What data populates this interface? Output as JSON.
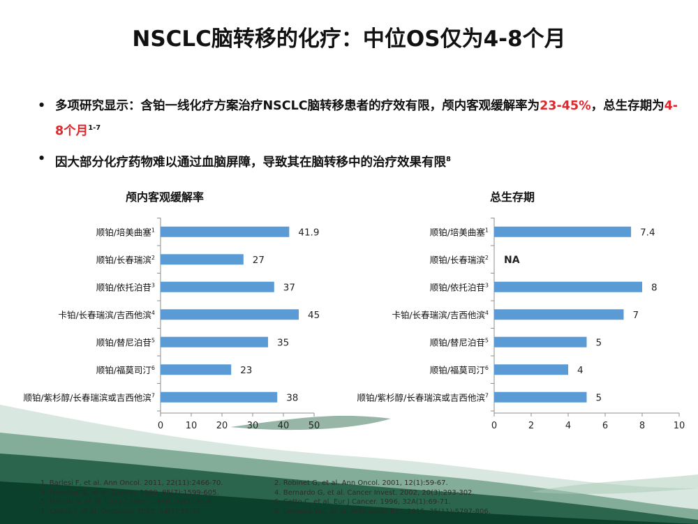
{
  "slide": {
    "title": "NSCLC脑转移的化疗：中位OS仅为4-8个月",
    "bullets": [
      {
        "parts": [
          {
            "text": "多项研究显示：含铂一线化疗方案治疗NSCLC脑转移患者的疗效有限，颅内客观缓解率为",
            "style": "normal"
          },
          {
            "text": "23-45%",
            "style": "red"
          },
          {
            "text": "，总生存期为",
            "style": "normal"
          },
          {
            "text": "4-8个月",
            "style": "red"
          },
          {
            "text": "1-7",
            "style": "sup"
          }
        ]
      },
      {
        "parts": [
          {
            "text": "因大部分化疗药物难以通过血脑屏障，导致其在脑转移中的治疗效果有限",
            "style": "normal"
          },
          {
            "text": "8",
            "style": "sup"
          }
        ]
      }
    ],
    "references": [
      [
        "1. Barlesi F, et al. Ann Oncol. 2011, 22(11):2466-70.",
        "2. Robinet G, et al. Ann Oncol. 2001, 12(1):59-67."
      ],
      [
        "3. Franciosi V, et al. Cancer. 1999, 85(7):1599-605.",
        "4. Bernardo G, et al. Cancer Invest. 2002, 20(3):293-302."
      ],
      [
        "5. Minotti V, et al. Lung Cancer. 1998, 20(2):93-8.",
        "6. Cotto C, et al. Eur J Cancer. 1996, 32A(1):69-71."
      ],
      [
        "7. Cortes J, et al. Oncology. 2003, 64(1):28-35.",
        "8. Dempke WC, et al. Anticancer Res. 2015, 35(11):5797-806."
      ]
    ],
    "colors": {
      "bar": "#5b9bd5",
      "highlight": "#e0262a"
    }
  },
  "chart_data": [
    {
      "type": "bar",
      "orientation": "horizontal",
      "title": "颅内客观缓解率",
      "categories": [
        "顺铂/培美曲塞",
        "顺铂/长春瑞滨",
        "顺铂/依托泊苷",
        "卡铂/长春瑞滨/吉西他滨",
        "顺铂/替尼泊苷",
        "顺铂/福莫司汀",
        "顺铂/紫杉醇/长春瑞滨或吉西他滨"
      ],
      "category_refs": [
        "1",
        "2",
        "3",
        "4",
        "5",
        "6",
        "7"
      ],
      "values": [
        41.9,
        27,
        37,
        45,
        35,
        23,
        38
      ],
      "labels": [
        "41.9",
        "27",
        "37",
        "45",
        "35",
        "23",
        "38"
      ],
      "xlim": [
        0,
        50
      ],
      "xticks": [
        0,
        10,
        20,
        30,
        40,
        50
      ],
      "grid": false,
      "xlabel": "",
      "ylabel": ""
    },
    {
      "type": "bar",
      "orientation": "horizontal",
      "title": "总生存期",
      "categories": [
        "顺铂/培美曲塞",
        "顺铂/长春瑞滨",
        "顺铂/依托泊苷",
        "卡铂/长春瑞滨/吉西他滨",
        "顺铂/替尼泊苷",
        "顺铂/福莫司汀",
        "顺铂/紫杉醇/长春瑞滨或吉西他滨"
      ],
      "category_refs": [
        "1",
        "2",
        "3",
        "4",
        "5",
        "6",
        "7"
      ],
      "values": [
        7.4,
        null,
        8,
        7,
        5,
        4,
        5
      ],
      "labels": [
        "7.4",
        "NA",
        "8",
        "7",
        "5",
        "4",
        "5"
      ],
      "xlim": [
        0,
        10
      ],
      "xticks": [
        0,
        2,
        4,
        6,
        8,
        10
      ],
      "grid": false,
      "xlabel": "",
      "ylabel": ""
    }
  ]
}
